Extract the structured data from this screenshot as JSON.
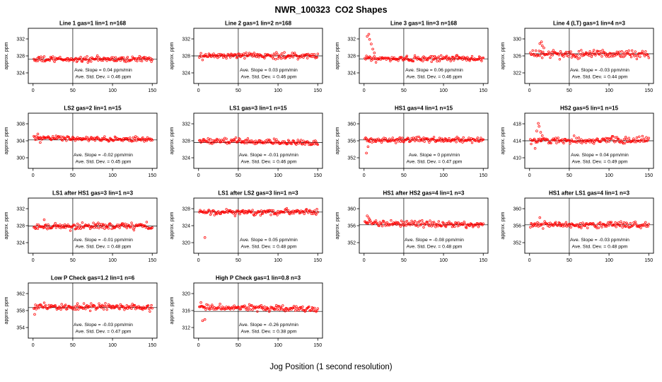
{
  "page": {
    "title": "NWR_100323  CO2 Shapes",
    "xlabel": "Jog Position (1 second resolution)"
  },
  "style": {
    "point_color": "#ff0000",
    "axis_color": "#000000",
    "background": "#ffffff"
  },
  "chart_data": [
    {
      "type": "scatter",
      "title": "Line 1 gas=1 lin=1 n=168",
      "ylabel": "approx. ppm",
      "xticks": [
        0,
        50,
        100,
        150
      ],
      "xlim": [
        -6,
        156
      ],
      "yticks": [
        324,
        328,
        332
      ],
      "ylim": [
        321.5,
        334.5
      ],
      "vline": 50,
      "hline": 327.2,
      "mean": 327.2,
      "trend_total": 0.1,
      "noise_sd": 0.33,
      "outliers": [],
      "annotations": {
        "slope": "Ave. Slope = 0.04 ppm/min",
        "stddev": "Ave. Std. Dev. = 0.46 ppm"
      }
    },
    {
      "type": "scatter",
      "title": "Line 2 gas=1 lin=2 n=168",
      "ylabel": "approx. ppm",
      "xticks": [
        0,
        50,
        100,
        150
      ],
      "xlim": [
        -6,
        156
      ],
      "yticks": [
        324,
        328,
        332
      ],
      "ylim": [
        321.5,
        334.5
      ],
      "vline": 50,
      "hline": 328.0,
      "mean": 328.0,
      "trend_total": 0.08,
      "noise_sd": 0.33,
      "outliers": [],
      "annotations": {
        "slope": "Ave. Slope = 0.03 ppm/min",
        "stddev": "Ave. Std. Dev. = 0.46 ppm"
      }
    },
    {
      "type": "scatter",
      "title": "Line 3 gas=1 lin=3 n=168",
      "ylabel": "approx. ppm",
      "xticks": [
        0,
        50,
        100,
        150
      ],
      "xlim": [
        -6,
        156
      ],
      "yticks": [
        324,
        328,
        332
      ],
      "ylim": [
        321.5,
        334.5
      ],
      "vline": 50,
      "hline": 327.3,
      "mean": 327.3,
      "trend_total": 0.15,
      "noise_sd": 0.33,
      "outliers": [
        [
          4,
          332.6
        ],
        [
          6,
          333.1
        ],
        [
          7,
          331.9
        ],
        [
          9,
          330.8
        ],
        [
          11,
          329.6
        ],
        [
          13,
          328.7
        ]
      ],
      "annotations": {
        "slope": "Ave. Slope = 0.06 ppm/min",
        "stddev": "Ave. Std. Dev. = 0.46 ppm"
      }
    },
    {
      "type": "scatter",
      "title": "Line 4 (LT) gas=1 lin=4 n=3",
      "ylabel": "approx. ppm",
      "xticks": [
        0,
        50,
        100,
        150
      ],
      "xlim": [
        -6,
        156
      ],
      "yticks": [
        322,
        326,
        330
      ],
      "ylim": [
        319.5,
        332.5
      ],
      "vline": 50,
      "hline": 326.5,
      "mean": 326.4,
      "trend_total": -0.08,
      "noise_sd": 0.45,
      "outliers": [
        [
          13,
          328.9
        ],
        [
          15,
          329.3
        ],
        [
          16,
          328.4
        ],
        [
          18,
          327.9
        ]
      ],
      "annotations": {
        "slope": "Ave. Slope = -0.03 ppm/min",
        "stddev": "Ave. Std. Dev. = 0.44 ppm"
      }
    },
    {
      "type": "scatter",
      "title": "LS2 gas=2 lin=1 n=15",
      "ylabel": "approx. ppm",
      "xticks": [
        0,
        50,
        100,
        150
      ],
      "xlim": [
        -6,
        156
      ],
      "yticks": [
        300,
        304,
        308
      ],
      "ylim": [
        297.5,
        310.5
      ],
      "vline": 50,
      "hline": 304.2,
      "mean": 304.5,
      "trend_total": -0.5,
      "noise_sd": 0.3,
      "outliers": [
        [
          6,
          305.6
        ],
        [
          9,
          303.6
        ]
      ],
      "annotations": {
        "slope": "Ave. Slope = -0.02 ppm/min",
        "stddev": "Ave. Std. Dev. = 0.45 ppm"
      }
    },
    {
      "type": "scatter",
      "title": "LS1 gas=3 lin=1 n=15",
      "ylabel": "approx. ppm",
      "xticks": [
        0,
        50,
        100,
        150
      ],
      "xlim": [
        -6,
        156
      ],
      "yticks": [
        324,
        328,
        332
      ],
      "ylim": [
        321.5,
        334.5
      ],
      "vline": 50,
      "hline": 327.6,
      "mean": 327.8,
      "trend_total": -0.6,
      "noise_sd": 0.3,
      "outliers": [],
      "annotations": {
        "slope": "Ave. Slope = -0.01 ppm/min",
        "stddev": "Ave. Std. Dev. = 0.46 ppm"
      }
    },
    {
      "type": "scatter",
      "title": "HS1 gas=4 lin=1 n=15",
      "ylabel": "approx. ppm",
      "xticks": [
        0,
        50,
        100,
        150
      ],
      "xlim": [
        -6,
        156
      ],
      "yticks": [
        352,
        356,
        360
      ],
      "ylim": [
        349.5,
        362.5
      ],
      "vline": 50,
      "hline": 356.2,
      "mean": 356.2,
      "trend_total": 0.0,
      "noise_sd": 0.33,
      "outliers": [
        [
          3,
          353.1
        ],
        [
          5,
          354.6
        ]
      ],
      "annotations": {
        "slope": "Ave. Slope = 0 ppm/min",
        "stddev": "Ave. Std. Dev. = 0.47 ppm"
      }
    },
    {
      "type": "scatter",
      "title": "HS2 gas=5 lin=1 n=15",
      "ylabel": "approx. ppm",
      "xticks": [
        0,
        50,
        100,
        150
      ],
      "xlim": [
        -6,
        156
      ],
      "yticks": [
        410,
        414,
        418
      ],
      "ylim": [
        407.5,
        420.5
      ],
      "vline": 50,
      "hline": 414.0,
      "mean": 414.1,
      "trend_total": 0.15,
      "noise_sd": 0.4,
      "outliers": [
        [
          7,
          412.2
        ],
        [
          9,
          416.3
        ],
        [
          11,
          418.1
        ],
        [
          12,
          417.4
        ],
        [
          14,
          416.0
        ],
        [
          16,
          415.2
        ]
      ],
      "annotations": {
        "slope": "Ave. Slope = 0.04 ppm/min",
        "stddev": "Ave. Std. Dev. = 0.49 ppm"
      }
    },
    {
      "type": "scatter",
      "title": "LS1 after HS1 gas=3 lin=1 n=3",
      "ylabel": "approx. ppm",
      "xticks": [
        0,
        50,
        100,
        150
      ],
      "xlim": [
        -6,
        156
      ],
      "yticks": [
        324,
        328,
        332
      ],
      "ylim": [
        321.5,
        334.5
      ],
      "vline": 50,
      "hline": 327.9,
      "mean": 327.9,
      "trend_total": -0.05,
      "noise_sd": 0.38,
      "outliers": [
        [
          14,
          329.4
        ]
      ],
      "annotations": {
        "slope": "Ave. Slope = -0.01 ppm/min",
        "stddev": "Ave. Std. Dev. = 0.48 ppm"
      }
    },
    {
      "type": "scatter",
      "title": "LS1 after LS2 gas=3 lin=1 n=3",
      "ylabel": "approx. ppm",
      "xticks": [
        0,
        50,
        100,
        150
      ],
      "xlim": [
        -6,
        156
      ],
      "yticks": [
        320,
        324,
        328
      ],
      "ylim": [
        317.5,
        330.5
      ],
      "vline": 50,
      "hline": 327.2,
      "mean": 327.2,
      "trend_total": 0.12,
      "noise_sd": 0.35,
      "outliers": [
        [
          8,
          321.2
        ]
      ],
      "annotations": {
        "slope": "Ave. Slope = 0.05 ppm/min",
        "stddev": "Ave. Std. Dev. = 0.48 ppm"
      }
    },
    {
      "type": "scatter",
      "title": "HS1 after HS2 gas=4 lin=1 n=3",
      "ylabel": "approx. ppm",
      "xticks": [
        0,
        50,
        100,
        150
      ],
      "xlim": [
        -6,
        156
      ],
      "yticks": [
        352,
        356,
        360
      ],
      "ylim": [
        349.5,
        362.5
      ],
      "vline": 50,
      "hline": 356.2,
      "mean": 356.4,
      "trend_total": -0.5,
      "noise_sd": 0.35,
      "outliers": [
        [
          4,
          358.3
        ],
        [
          6,
          357.8
        ]
      ],
      "annotations": {
        "slope": "Ave. Slope = -0.08 ppm/min",
        "stddev": "Ave. Std. Dev. = 0.48 ppm"
      }
    },
    {
      "type": "scatter",
      "title": "HS1 after LS1 gas=4 lin=1 n=3",
      "ylabel": "approx. ppm",
      "xticks": [
        0,
        50,
        100,
        150
      ],
      "xlim": [
        -6,
        156
      ],
      "yticks": [
        352,
        356,
        360
      ],
      "ylim": [
        349.5,
        362.5
      ],
      "vline": 50,
      "hline": 356.2,
      "mean": 356.2,
      "trend_total": -0.1,
      "noise_sd": 0.35,
      "outliers": [
        [
          13,
          357.9
        ]
      ],
      "annotations": {
        "slope": "Ave. Slope = -0.03 ppm/min",
        "stddev": "Ave. Std. Dev. = 0.48 ppm"
      }
    },
    {
      "type": "scatter",
      "title": "Low P Check gas=1.2 lin=1 n=6",
      "ylabel": "approx. ppm",
      "xticks": [
        0,
        50,
        100,
        150
      ],
      "xlim": [
        -6,
        156
      ],
      "yticks": [
        354,
        358,
        362
      ],
      "ylim": [
        351.5,
        364.5
      ],
      "vline": 50,
      "hline": 358.7,
      "mean": 358.9,
      "trend_total": -0.3,
      "noise_sd": 0.35,
      "outliers": [
        [
          2,
          357.1
        ]
      ],
      "annotations": {
        "slope": "Ave. Slope = -0.03 ppm/min",
        "stddev": "Ave. Std. Dev. = 0.47 ppm"
      }
    },
    {
      "type": "scatter",
      "title": "High P Check gas=1 lin=0.8 n=3",
      "ylabel": "approx. ppm",
      "xticks": [
        0,
        50,
        100,
        150
      ],
      "xlim": [
        -6,
        156
      ],
      "yticks": [
        312,
        316,
        320
      ],
      "ylim": [
        309.5,
        322.5
      ],
      "vline": 50,
      "hline": 315.8,
      "mean": 316.6,
      "trend_total": -0.7,
      "noise_sd": 0.33,
      "outliers": [
        [
          3,
          317.9
        ],
        [
          5,
          313.6
        ],
        [
          8,
          313.9
        ]
      ],
      "annotations": {
        "slope": "Ave. Slope = -0.26 ppm/min",
        "stddev": "Ave. Std. Dev. = 0.38 ppm"
      }
    }
  ]
}
